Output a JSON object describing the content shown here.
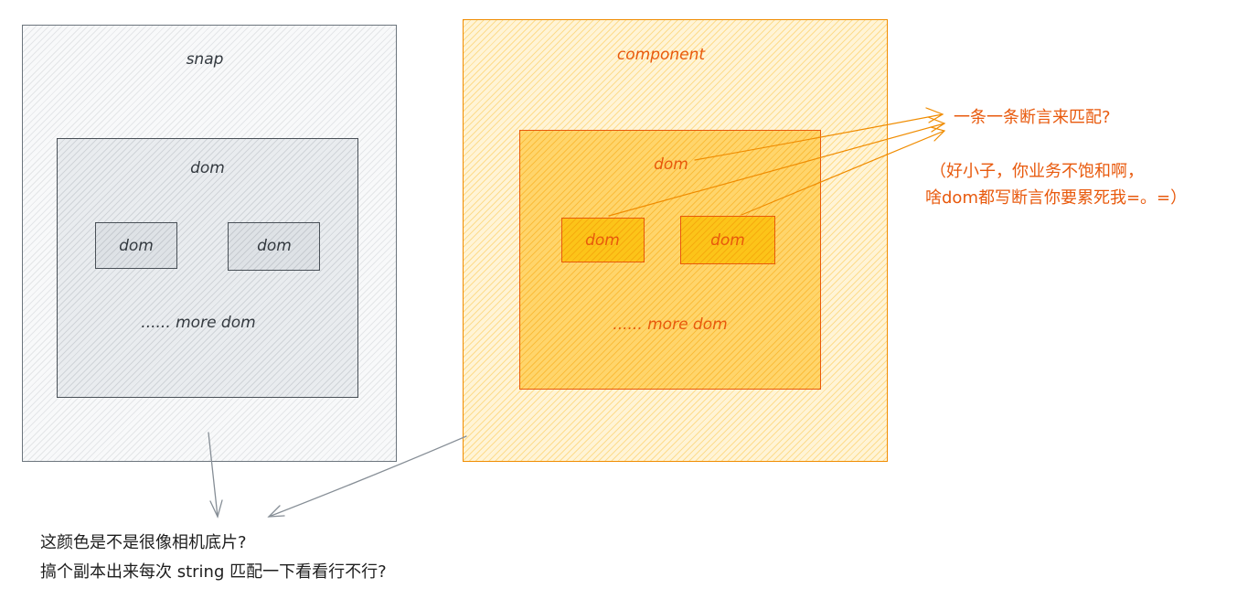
{
  "snap": {
    "title": "snap",
    "inner_label": "dom",
    "child_1": "dom",
    "child_2": "dom",
    "more": "...... more dom"
  },
  "component": {
    "title": "component",
    "inner_label": "dom",
    "child_1": "dom",
    "child_2": "dom",
    "more": "...... more dom"
  },
  "notes": {
    "assert_each": "一条一条断言来匹配?",
    "comment_line_1": "（好小子，你业务不饱和啊，",
    "comment_line_2": "啥dom都写断言你要累死我=。=）",
    "bottom_line_1": "这颜色是不是很像相机底片?",
    "bottom_line_2": "搞个副本出来每次 string 匹配一下看看行不行?"
  },
  "colors": {
    "snap_stroke": "#495057",
    "snap_fill": "#e9ecef",
    "component_stroke": "#e8590c",
    "component_fill": "#ffd56b",
    "arrow_gray": "#868e96",
    "arrow_orange": "#f08c00",
    "note_orange": "#e8590c"
  }
}
